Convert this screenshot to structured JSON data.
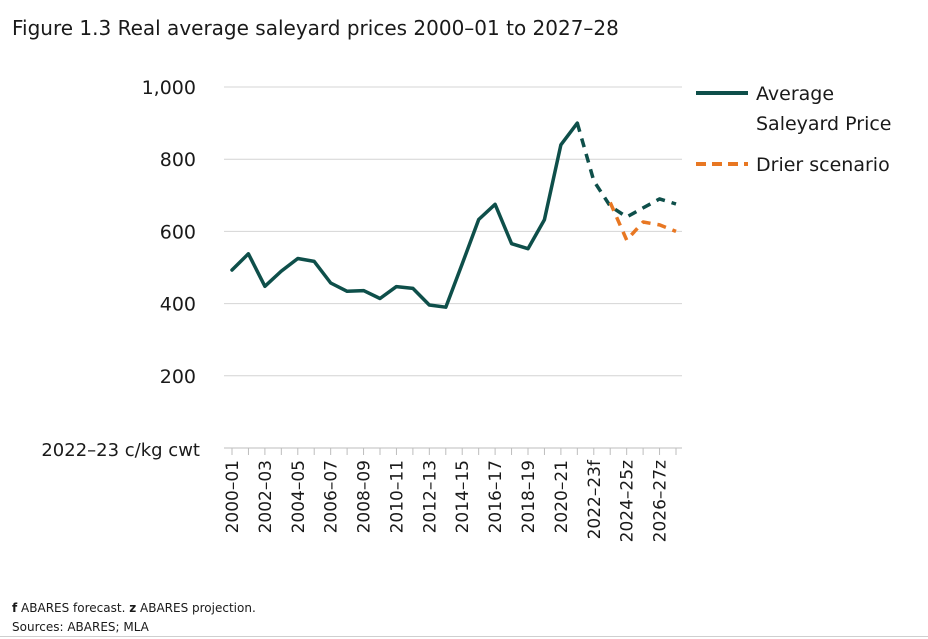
{
  "figure": {
    "title": "Figure 1.3 Real average saleyard prices 2000–01 to 2027–28",
    "footnote_forecast_key": "f",
    "footnote_forecast_text": " ABARES forecast. ",
    "footnote_projection_key": "z",
    "footnote_projection_text": " ABARES projection.",
    "sources": "Sources: ABARES; MLA"
  },
  "chart_data": {
    "type": "line",
    "ylabel": "2022–23 c/kg cwt",
    "ylim": [
      0,
      1000
    ],
    "yticks": [
      {
        "value": 200,
        "label": "200"
      },
      {
        "value": 400,
        "label": "400"
      },
      {
        "value": 600,
        "label": "600"
      },
      {
        "value": 800,
        "label": "800"
      },
      {
        "value": 1000,
        "label": "1,000"
      }
    ],
    "grid": true,
    "legend_position": "right",
    "x": [
      "2000–01",
      "2001–02",
      "2002–03",
      "2003–04",
      "2004–05",
      "2005–06",
      "2006–07",
      "2007–08",
      "2008–09",
      "2009–10",
      "2010–11",
      "2011–12",
      "2012–13",
      "2013–14",
      "2014–15",
      "2015–16",
      "2016–17",
      "2017–18",
      "2018–19",
      "2019–20",
      "2020–21",
      "2021–22",
      "2022–23f",
      "2023–24z",
      "2024–25z",
      "2025–26z",
      "2026–27z",
      "2027–28z"
    ],
    "tick_labels": [
      "2000–01",
      "2002–03",
      "2004–05",
      "2006–07",
      "2008–09",
      "2010–11",
      "2012–13",
      "2014–15",
      "2016–17",
      "2018–19",
      "2020–21",
      "2022–23f",
      "2024–25z",
      "2026–27z"
    ],
    "series": [
      {
        "name": "Average Saleyard Price",
        "legend_lines": [
          "Average",
          "Saleyard Price"
        ],
        "color": "#0e4f4a",
        "values": [
          493,
          538,
          448,
          490,
          525,
          517,
          457,
          434,
          436,
          414,
          447,
          442,
          396,
          390,
          510,
          633,
          675,
          566,
          552,
          632,
          840,
          900,
          740,
          670,
          640,
          665,
          690,
          676
        ],
        "projected_from_index": 21
      },
      {
        "name": "Drier scenario",
        "legend_lines": [
          "Drier scenario"
        ],
        "color": "#e87722",
        "values": [
          null,
          null,
          null,
          null,
          null,
          null,
          null,
          null,
          null,
          null,
          null,
          null,
          null,
          null,
          null,
          null,
          null,
          null,
          null,
          null,
          null,
          null,
          null,
          680,
          576,
          626,
          618,
          600
        ],
        "projected_from_index": 23
      }
    ]
  }
}
